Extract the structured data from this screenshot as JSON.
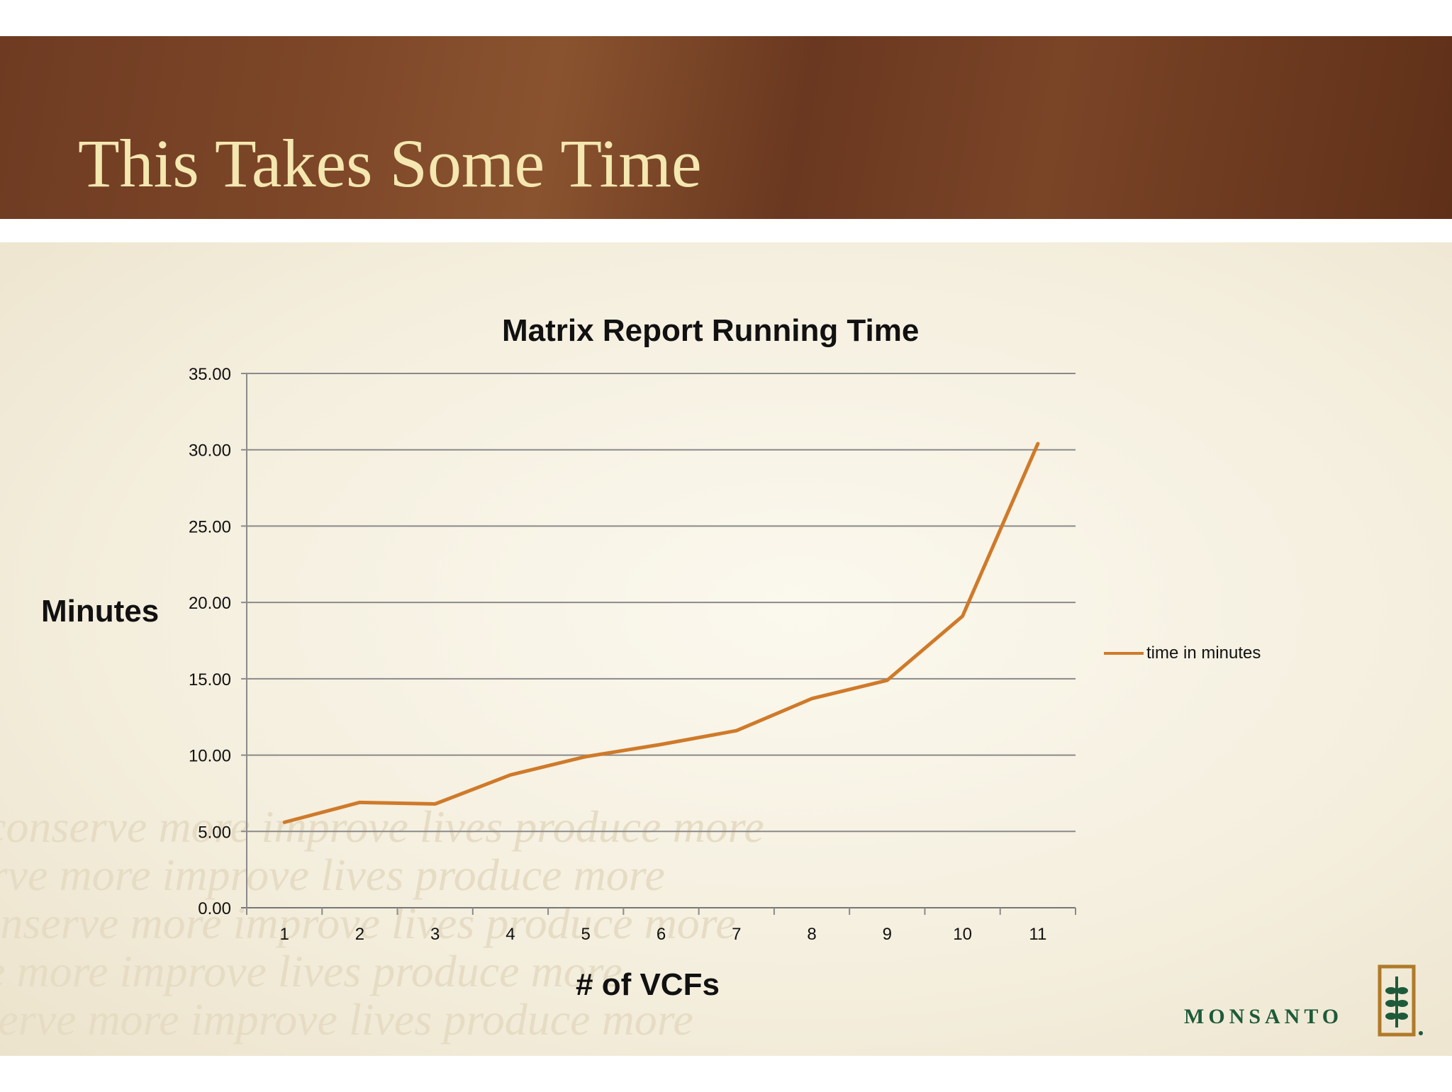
{
  "slide": {
    "title": "This Takes Some Time"
  },
  "brand": {
    "name": "MONSANTO",
    "color": "#1d5a3a",
    "watermark": "conserve more improve lives produce more"
  },
  "chart_data": {
    "type": "line",
    "title": "Matrix Report Running Time",
    "xlabel": "# of VCFs",
    "ylabel": "Minutes",
    "categories": [
      "1",
      "2",
      "3",
      "4",
      "5",
      "6",
      "7",
      "8",
      "9",
      "10",
      "11"
    ],
    "yticks": [
      "0.00",
      "5.00",
      "10.00",
      "15.00",
      "20.00",
      "25.00",
      "30.00",
      "35.00"
    ],
    "ylim": [
      0,
      35
    ],
    "grid": true,
    "legend_position": "right",
    "series": [
      {
        "name": "time in minutes",
        "color": "#cf7a2a",
        "values": [
          5.6,
          6.9,
          6.8,
          8.7,
          9.9,
          10.7,
          11.6,
          13.7,
          14.9,
          19.1,
          30.4
        ]
      }
    ]
  }
}
